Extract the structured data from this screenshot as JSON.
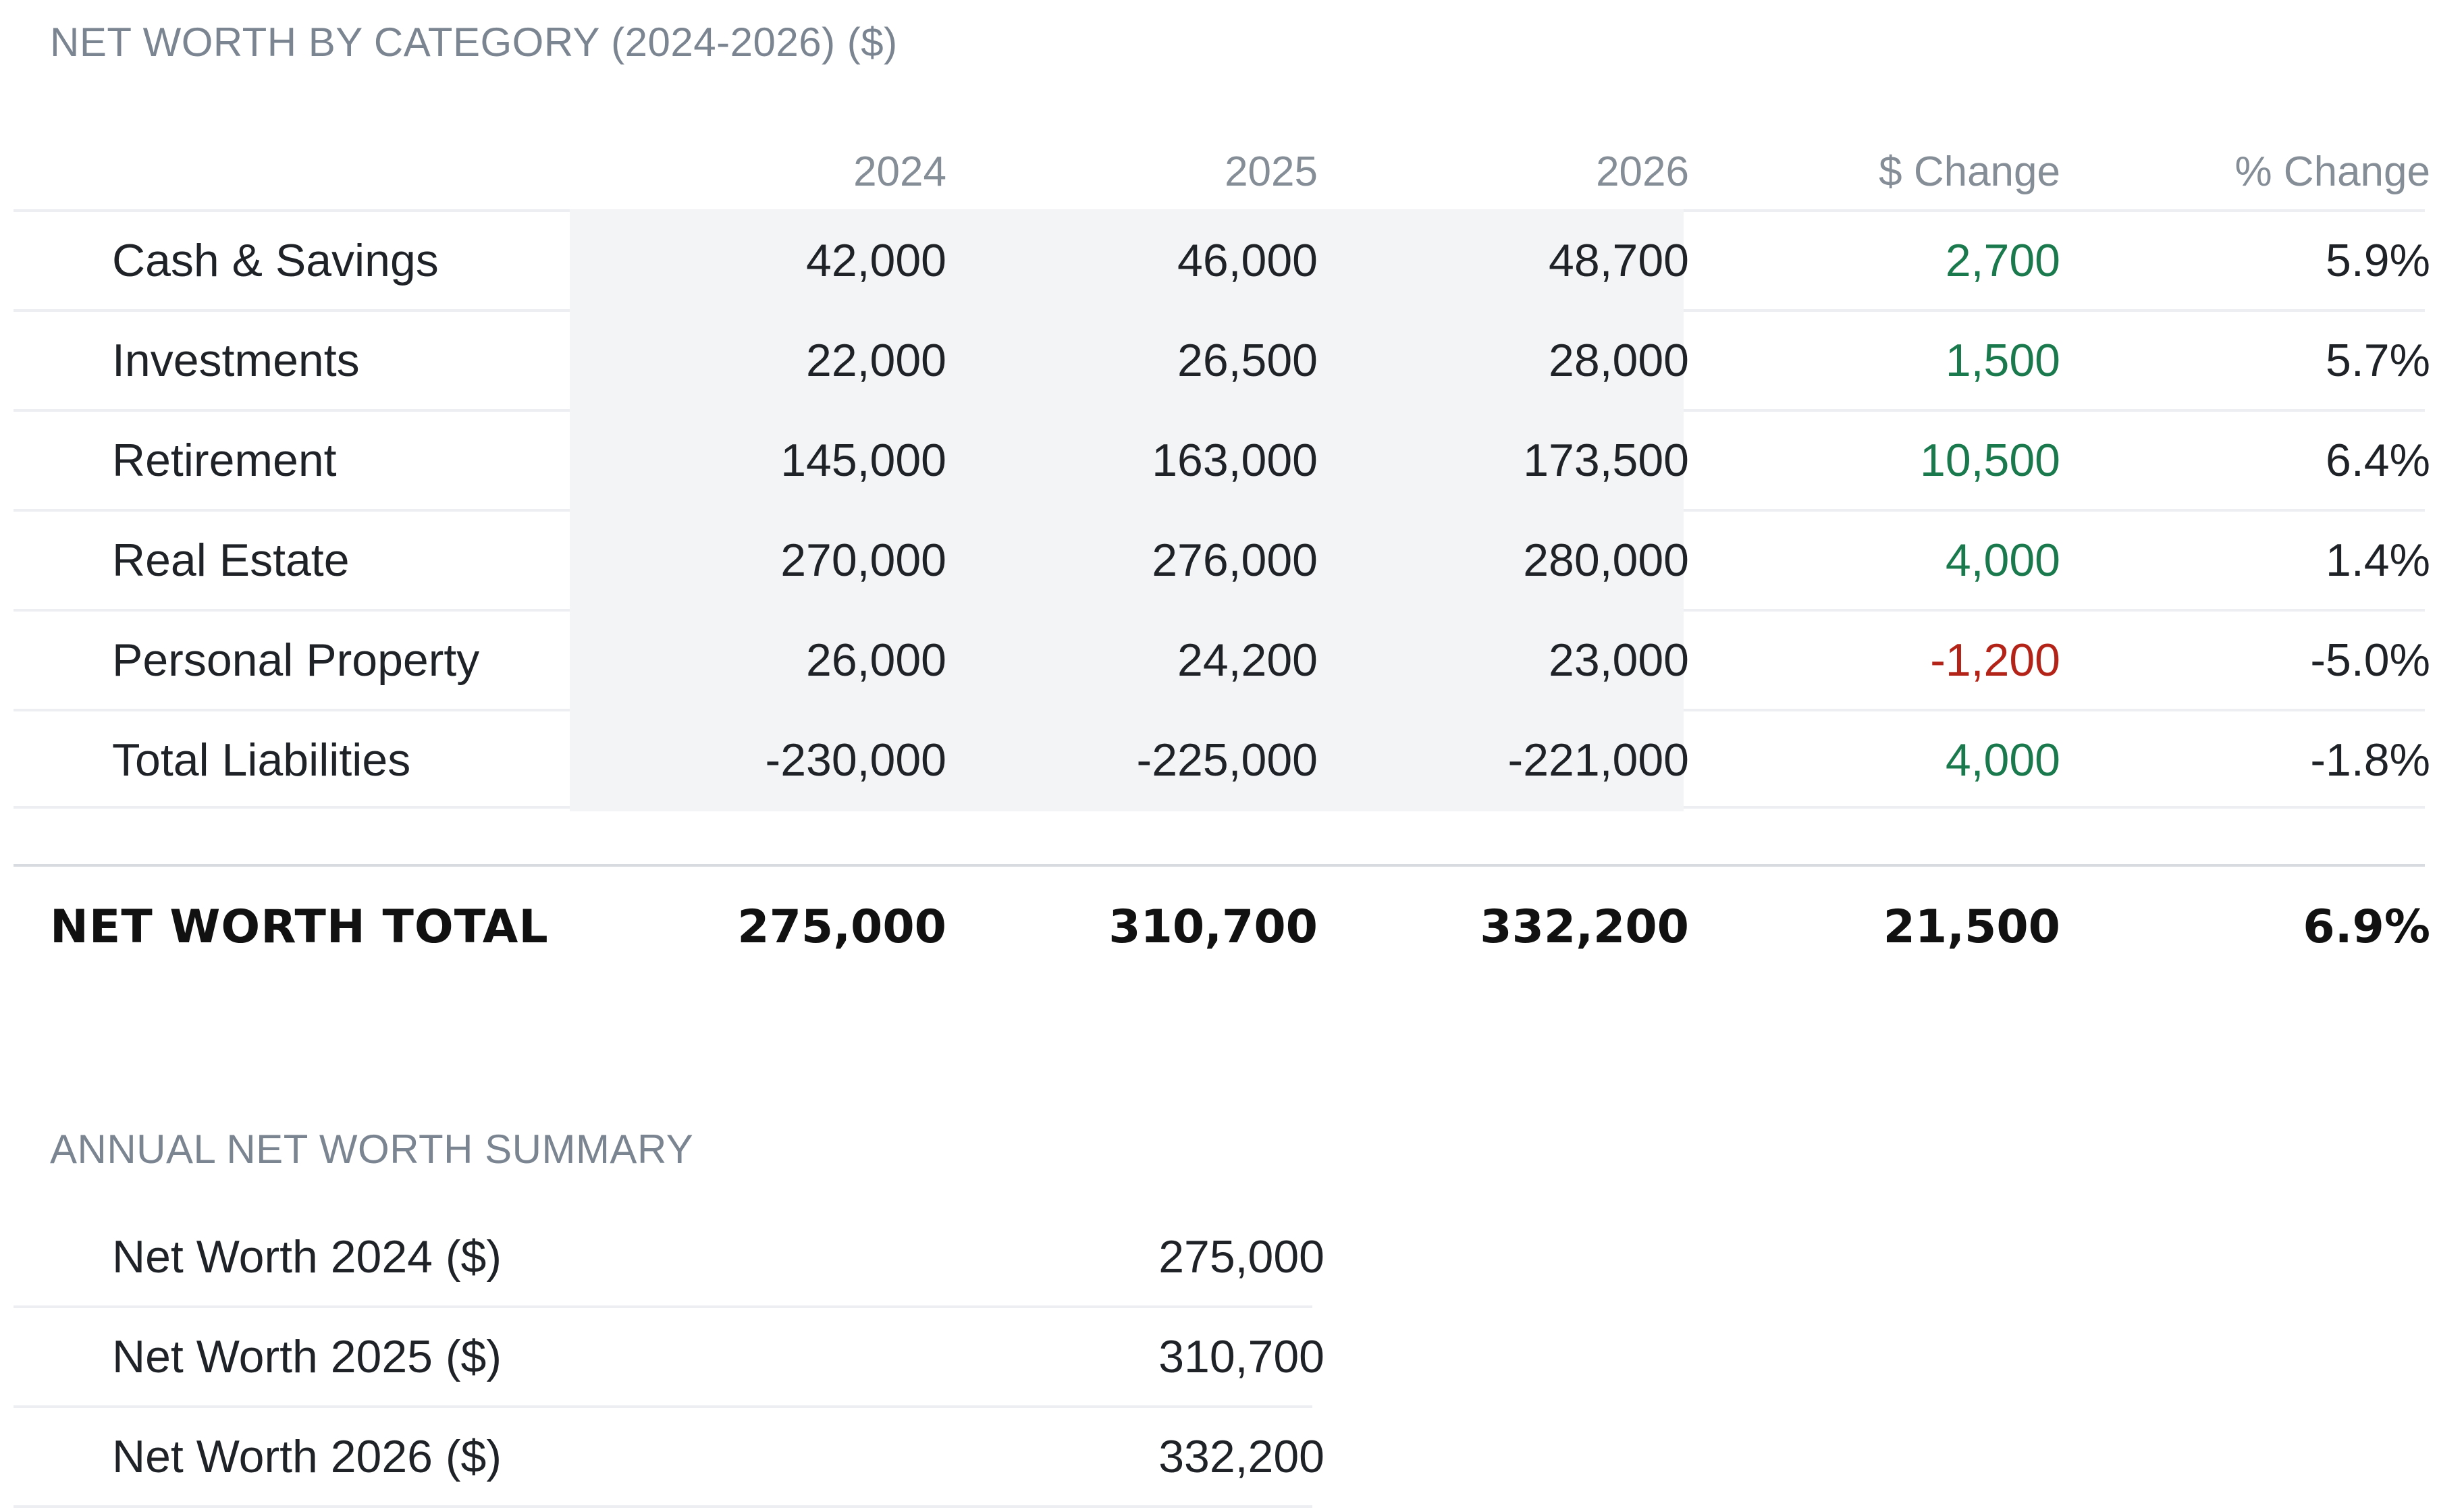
{
  "main_table": {
    "title": "NET WORTH BY CATEGORY (2024-2026) ($)",
    "columns": [
      "2024",
      "2025",
      "2026",
      "$ Change",
      "% Change"
    ],
    "rows": [
      {
        "category": "Cash & Savings",
        "y2024": "42,000",
        "y2025": "46,000",
        "y2026": "48,700",
        "change": "2,700",
        "pct_change": "5.9%",
        "change_status": "positive"
      },
      {
        "category": "Investments",
        "y2024": "22,000",
        "y2025": "26,500",
        "y2026": "28,000",
        "change": "1,500",
        "pct_change": "5.7%",
        "change_status": "positive"
      },
      {
        "category": "Retirement",
        "y2024": "145,000",
        "y2025": "163,000",
        "y2026": "173,500",
        "change": "10,500",
        "pct_change": "6.4%",
        "change_status": "positive"
      },
      {
        "category": "Real Estate",
        "y2024": "270,000",
        "y2025": "276,000",
        "y2026": "280,000",
        "change": "4,000",
        "pct_change": "1.4%",
        "change_status": "positive"
      },
      {
        "category": "Personal Property",
        "y2024": "26,000",
        "y2025": "24,200",
        "y2026": "23,000",
        "change": "-1,200",
        "pct_change": "-5.0%",
        "change_status": "negative"
      },
      {
        "category": "Total Liabilities",
        "y2024": "-230,000",
        "y2025": "-225,000",
        "y2026": "-221,000",
        "change": "4,000",
        "pct_change": "-1.8%",
        "change_status": "positive"
      }
    ],
    "total": {
      "label": "NET WORTH TOTAL",
      "y2024": "275,000",
      "y2025": "310,700",
      "y2026": "332,200",
      "change": "21,500",
      "pct_change": "6.9%"
    }
  },
  "summary_table": {
    "title": "ANNUAL NET WORTH SUMMARY",
    "rows": [
      {
        "label": "Net Worth 2024 ($)",
        "value": "275,000"
      },
      {
        "label": "Net Worth 2025 ($)",
        "value": "310,700"
      },
      {
        "label": "Net Worth 2026 ($)",
        "value": "332,200"
      }
    ]
  },
  "colors": {
    "positive": "#1a7a4d",
    "negative": "#b42318",
    "header_text": "#858d97",
    "shaded_columns": "#f3f4f6"
  }
}
